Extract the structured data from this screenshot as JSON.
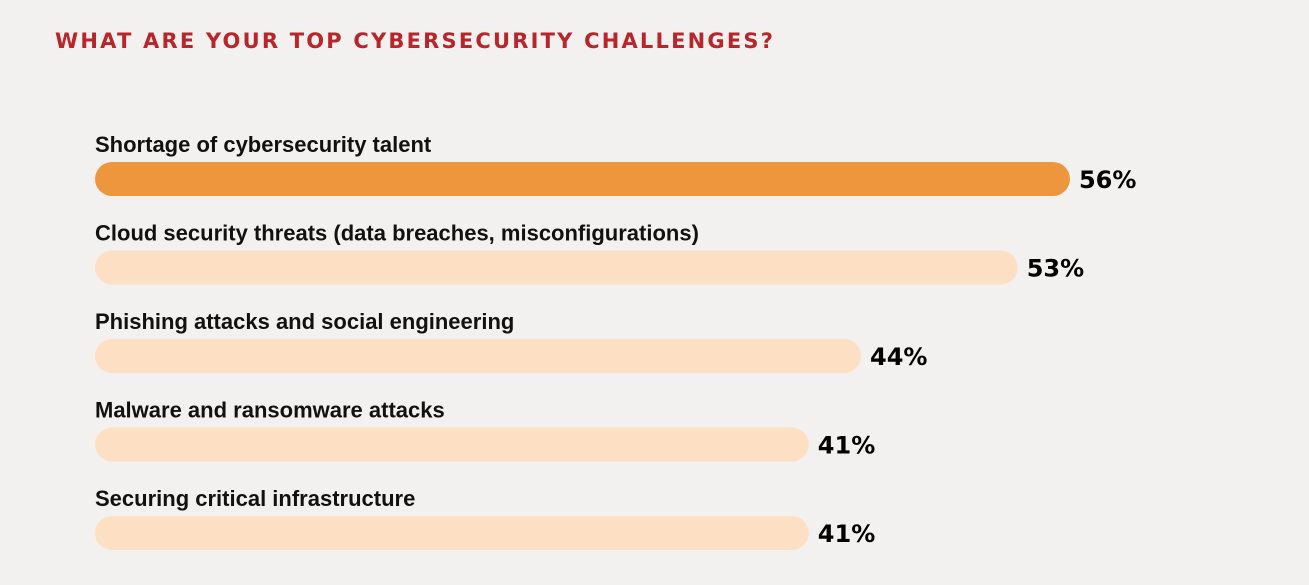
{
  "chart_data": {
    "type": "bar",
    "orientation": "horizontal",
    "title": "WHAT ARE YOUR TOP CYBERSECURITY CHALLENGES?",
    "categories": [
      "Shortage of cybersecurity talent",
      "Cloud security threats (data breaches, misconfigurations)",
      "Phishing attacks and social engineering",
      "Malware and ransomware attacks",
      "Securing critical infrastructure"
    ],
    "values": [
      56,
      53,
      44,
      41,
      41
    ],
    "value_labels": [
      "56%",
      "53%",
      "44%",
      "41%",
      "41%"
    ],
    "highlight_index": 0,
    "xlim": [
      0,
      100
    ],
    "xlabel": "",
    "ylabel": "",
    "grid": false,
    "legend": "none"
  },
  "colors": {
    "title": "#b8262b",
    "highlight_bar": "#ee963e",
    "bar": "#fde0c4",
    "label": "#111111",
    "background": "#f3f1f0"
  }
}
